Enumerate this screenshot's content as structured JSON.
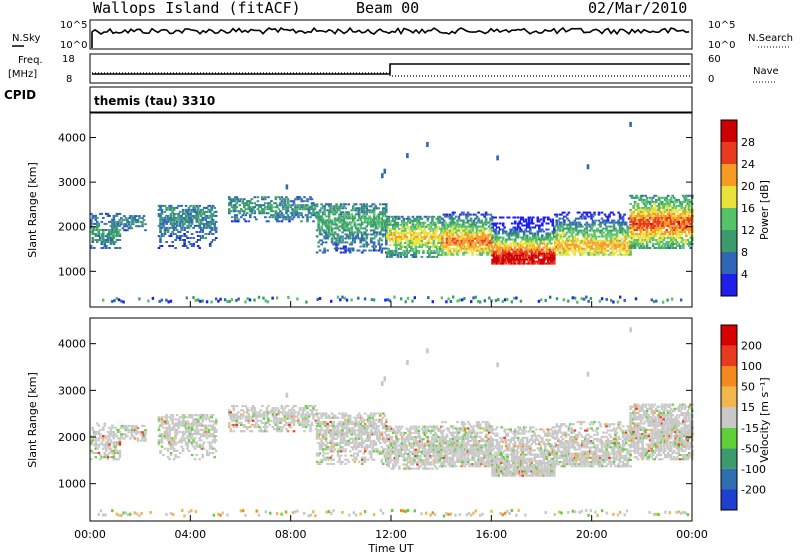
{
  "header": {
    "station": "Wallops Island (fitACF)",
    "beam": "Beam 00",
    "date": "02/Mar/2010"
  },
  "summary_panels": {
    "nsky_label": "N.Sky",
    "nsearch_label": "N.Search",
    "noise_ticks": [
      "10^5",
      "10^0"
    ],
    "freq_label_1": "Freq.",
    "freq_label_2": "[MHz]",
    "freq_ticks": [
      "18",
      "8"
    ],
    "nave_label": "Nave",
    "nave_ticks": [
      "60",
      "0"
    ],
    "cpid_label": "CPID",
    "cpid_value": "themis (tau) 3310"
  },
  "chart_data": [
    {
      "type": "heatmap",
      "name": "power",
      "ylabel": "Slant Range [km]",
      "xlabel": "",
      "x_range_hours": [
        0,
        24
      ],
      "ylim": [
        200,
        4550
      ],
      "yticks": [
        1000,
        2000,
        3000,
        4000
      ],
      "xticks": [
        "00:00",
        "04:00",
        "08:00",
        "12:00",
        "16:00",
        "20:00",
        "00:00"
      ],
      "colorbar": {
        "label": "Power [dB]",
        "ticks": [
          "4",
          "8",
          "12",
          "16",
          "20",
          "24",
          "28"
        ],
        "colors": [
          "#1f1fe8",
          "#2f66b8",
          "#3b9b6d",
          "#55c36a",
          "#e9e23a",
          "#f79b25",
          "#e83a1e",
          "#cc0000"
        ]
      },
      "bands": [
        {
          "t0": 0.0,
          "t1": 1.2,
          "lo": 1500,
          "hi": 2300,
          "mid": 1850,
          "strength": 0.2
        },
        {
          "t0": 1.2,
          "t1": 2.2,
          "lo": 1900,
          "hi": 2250,
          "mid": 2080,
          "strength": 0.15
        },
        {
          "t0": 2.7,
          "t1": 5.0,
          "lo": 1500,
          "hi": 2450,
          "mid": 2200,
          "strength": 0.15
        },
        {
          "t0": 5.5,
          "t1": 9.0,
          "lo": 2100,
          "hi": 2650,
          "mid": 2400,
          "strength": 0.2
        },
        {
          "t0": 9.0,
          "t1": 11.8,
          "lo": 1400,
          "hi": 2500,
          "mid": 2100,
          "strength": 0.25
        },
        {
          "t0": 11.8,
          "t1": 14.0,
          "lo": 1300,
          "hi": 2200,
          "mid": 1750,
          "strength": 0.55
        },
        {
          "t0": 14.0,
          "t1": 16.0,
          "lo": 1350,
          "hi": 2300,
          "mid": 1650,
          "strength": 0.7
        },
        {
          "t0": 16.0,
          "t1": 18.5,
          "lo": 1150,
          "hi": 2200,
          "mid": 1250,
          "strength": 0.95
        },
        {
          "t0": 18.5,
          "t1": 21.5,
          "lo": 1350,
          "hi": 2300,
          "mid": 1550,
          "strength": 0.6
        },
        {
          "t0": 21.5,
          "t1": 24.0,
          "lo": 1500,
          "hi": 2700,
          "mid": 2050,
          "strength": 0.75
        }
      ],
      "ground_scatter_strip": [
        300,
        420
      ]
    },
    {
      "type": "heatmap",
      "name": "velocity",
      "ylabel": "Slant Range [km]",
      "xlabel": "Time UT",
      "x_range_hours": [
        0,
        24
      ],
      "ylim": [
        200,
        4550
      ],
      "yticks": [
        1000,
        2000,
        3000,
        4000
      ],
      "xticks": [
        "00:00",
        "04:00",
        "08:00",
        "12:00",
        "16:00",
        "20:00",
        "00:00"
      ],
      "colorbar": {
        "label": "Velocity [m s⁻¹]",
        "ticks": [
          "200",
          "100",
          "50",
          "15",
          "-15",
          "-50",
          "-100",
          "-200"
        ],
        "colors": [
          "#1f3fd0",
          "#2f6fb0",
          "#3b9b6d",
          "#5fcf3a",
          "#c8c8c8",
          "#f2b64a",
          "#f38a1e",
          "#e83a1e",
          "#d60000"
        ]
      },
      "dominant_value": "-15..15",
      "ground_scatter_strip": [
        300,
        420
      ]
    }
  ]
}
